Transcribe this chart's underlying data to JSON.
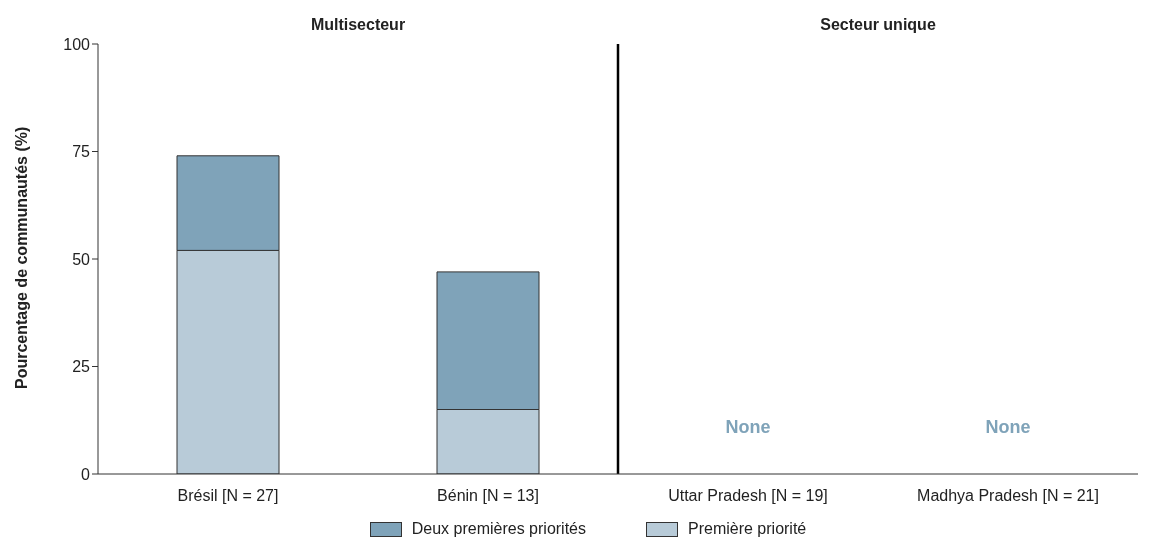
{
  "chart_data": {
    "type": "bar",
    "stacked": true,
    "ylabel": "Pourcentage de communautés (%)",
    "categories": [
      "Brésil [N = 27]",
      "Bénin [N = 13]",
      "Uttar Pradesh [N = 19]",
      "Madhya Pradesh [N = 21]"
    ],
    "series": [
      {
        "name": "Première priorité",
        "color": "#b8cbd8",
        "values": [
          52,
          15,
          0,
          0
        ]
      },
      {
        "name": "Deux premières priorités",
        "color": "#7fa3b9",
        "values": [
          22,
          32,
          0,
          0
        ]
      }
    ],
    "ylim": [
      0,
      100
    ],
    "yticks": [
      0,
      25,
      50,
      75,
      100
    ],
    "grid": false,
    "legend": "bottom",
    "annotations": [
      "Multisecteur",
      "Secteur unique",
      "None",
      "None"
    ]
  }
}
